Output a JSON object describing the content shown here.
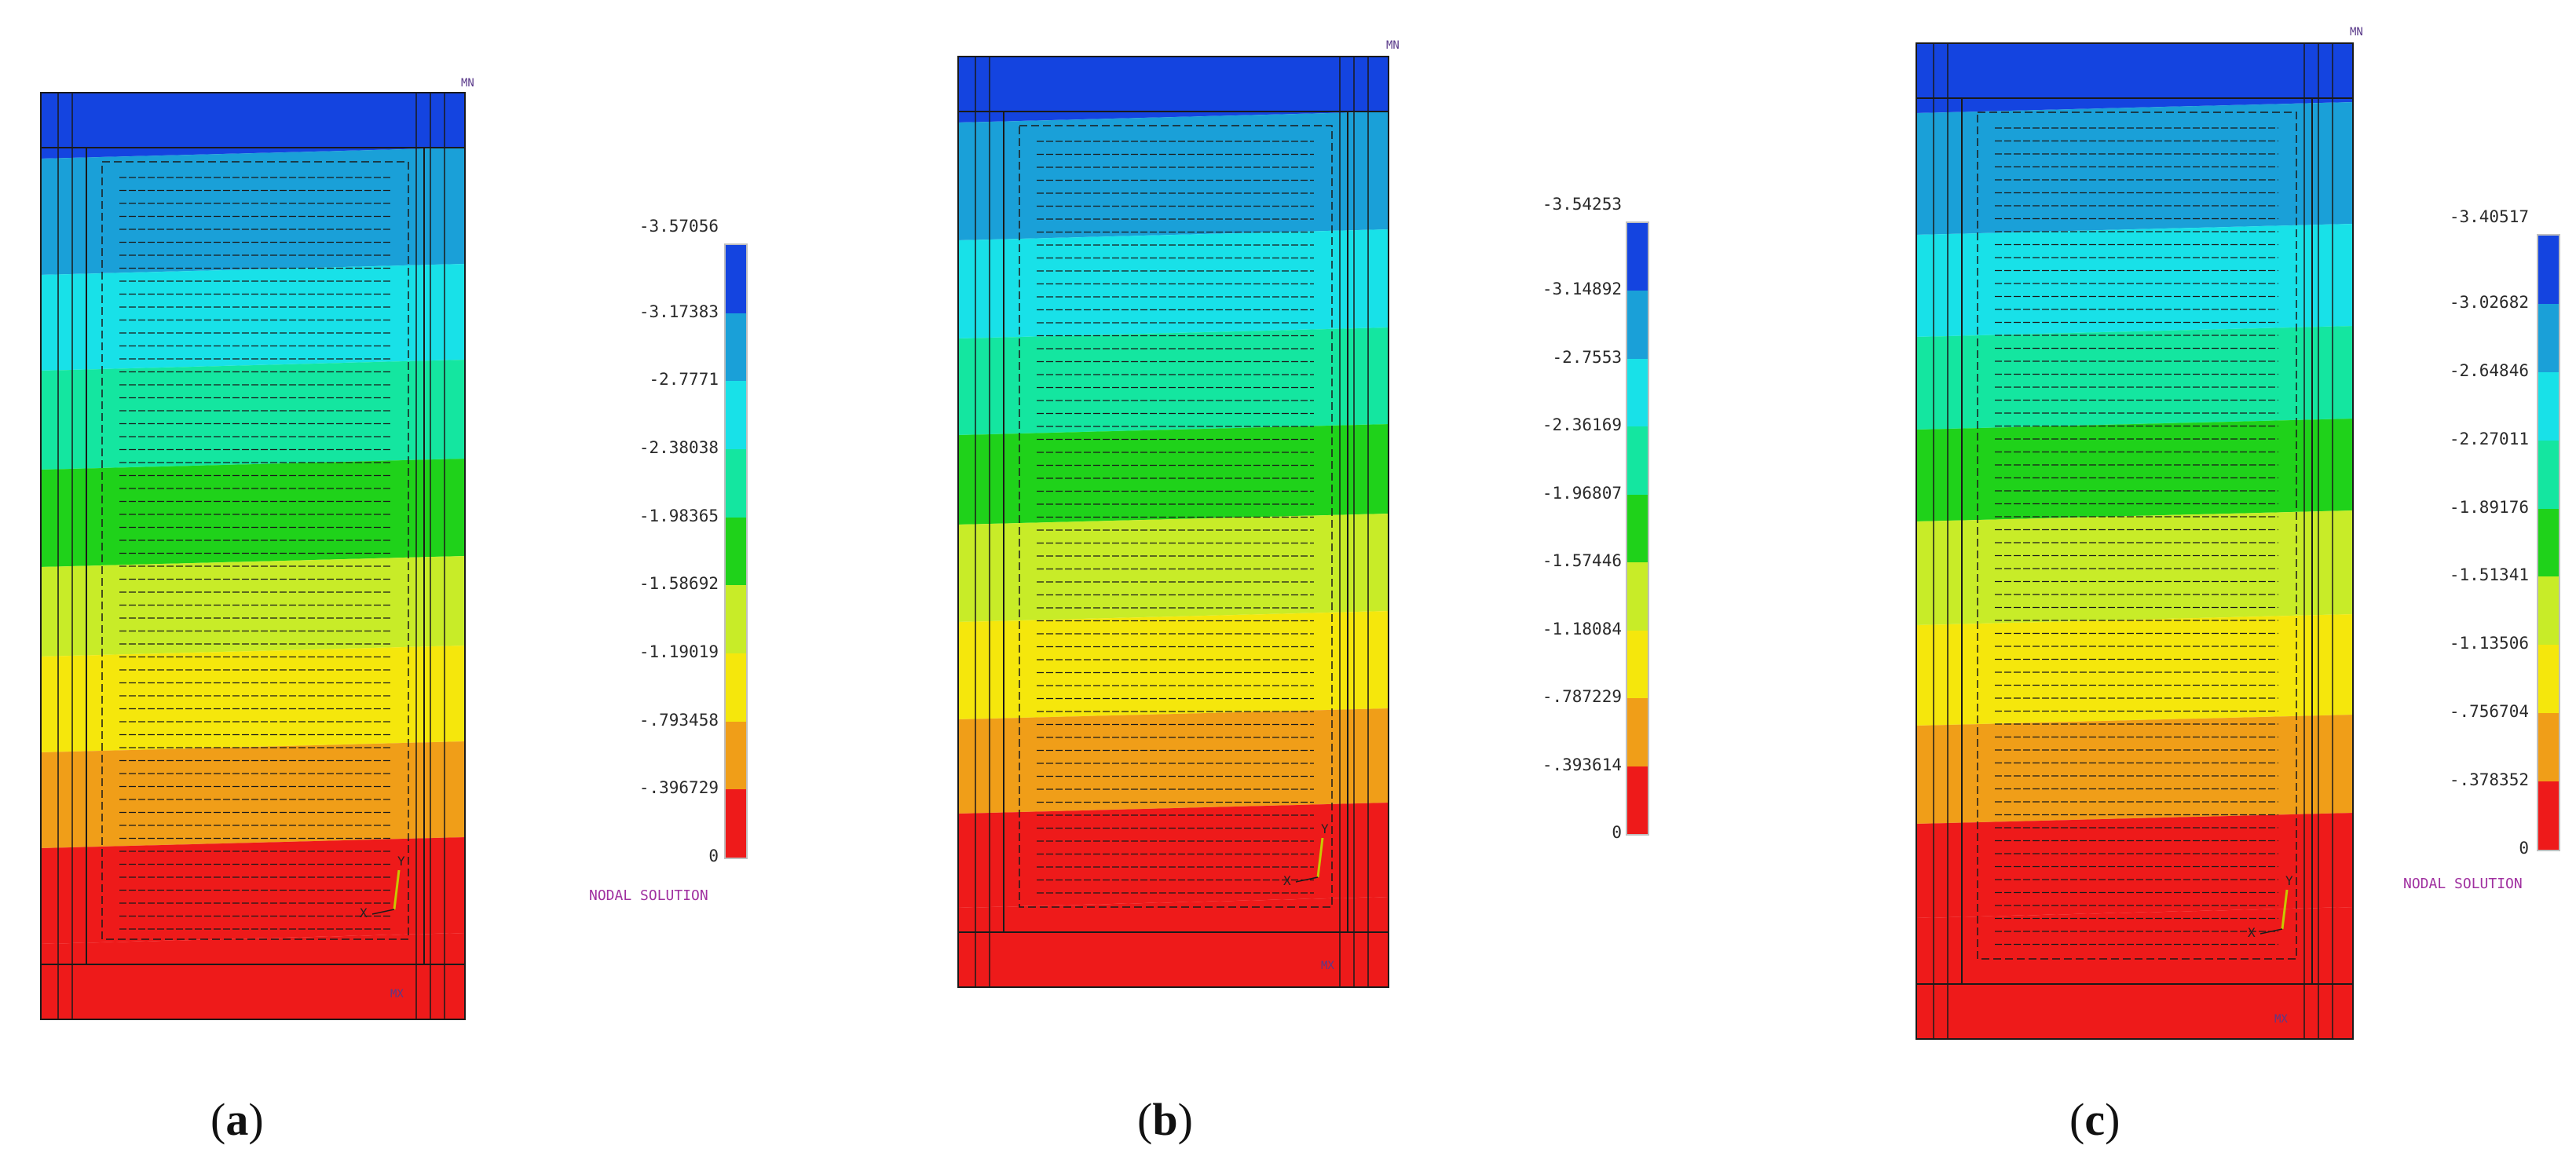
{
  "colors": [
    "#ee1a1a",
    "#f09e18",
    "#f5e70c",
    "#c8ec28",
    "#1fd21a",
    "#14e6a0",
    "#18e1e8",
    "#1aa0d8",
    "#1444e0"
  ],
  "panels": [
    {
      "caption_letter": "a",
      "legend_values": [
        "-3.57056",
        "-3.17383",
        "-2.7771",
        "-2.38038",
        "-1.98365",
        "-1.58692",
        "-1.19019",
        "-.793458",
        "-.396729",
        "0"
      ],
      "legend_title": "NODAL SOLUTION",
      "mx_label": "MX",
      "mn_label": "MN"
    },
    {
      "caption_letter": "b",
      "legend_values": [
        "-3.54253",
        "-3.14892",
        "-2.7553",
        "-2.36169",
        "-1.96807",
        "-1.57446",
        "-1.18084",
        "-.787229",
        "-.393614",
        "0"
      ],
      "legend_title": "",
      "mx_label": "MX",
      "mn_label": "MN"
    },
    {
      "caption_letter": "c",
      "legend_values": [
        "-3.40517",
        "-3.02682",
        "-2.64846",
        "-2.27011",
        "-1.89176",
        "-1.51341",
        "-1.13506",
        "-.756704",
        "-.378352",
        "0"
      ],
      "legend_title": "NODAL SOLUTION",
      "mx_label": "MX",
      "mn_label": "MN"
    }
  ]
}
